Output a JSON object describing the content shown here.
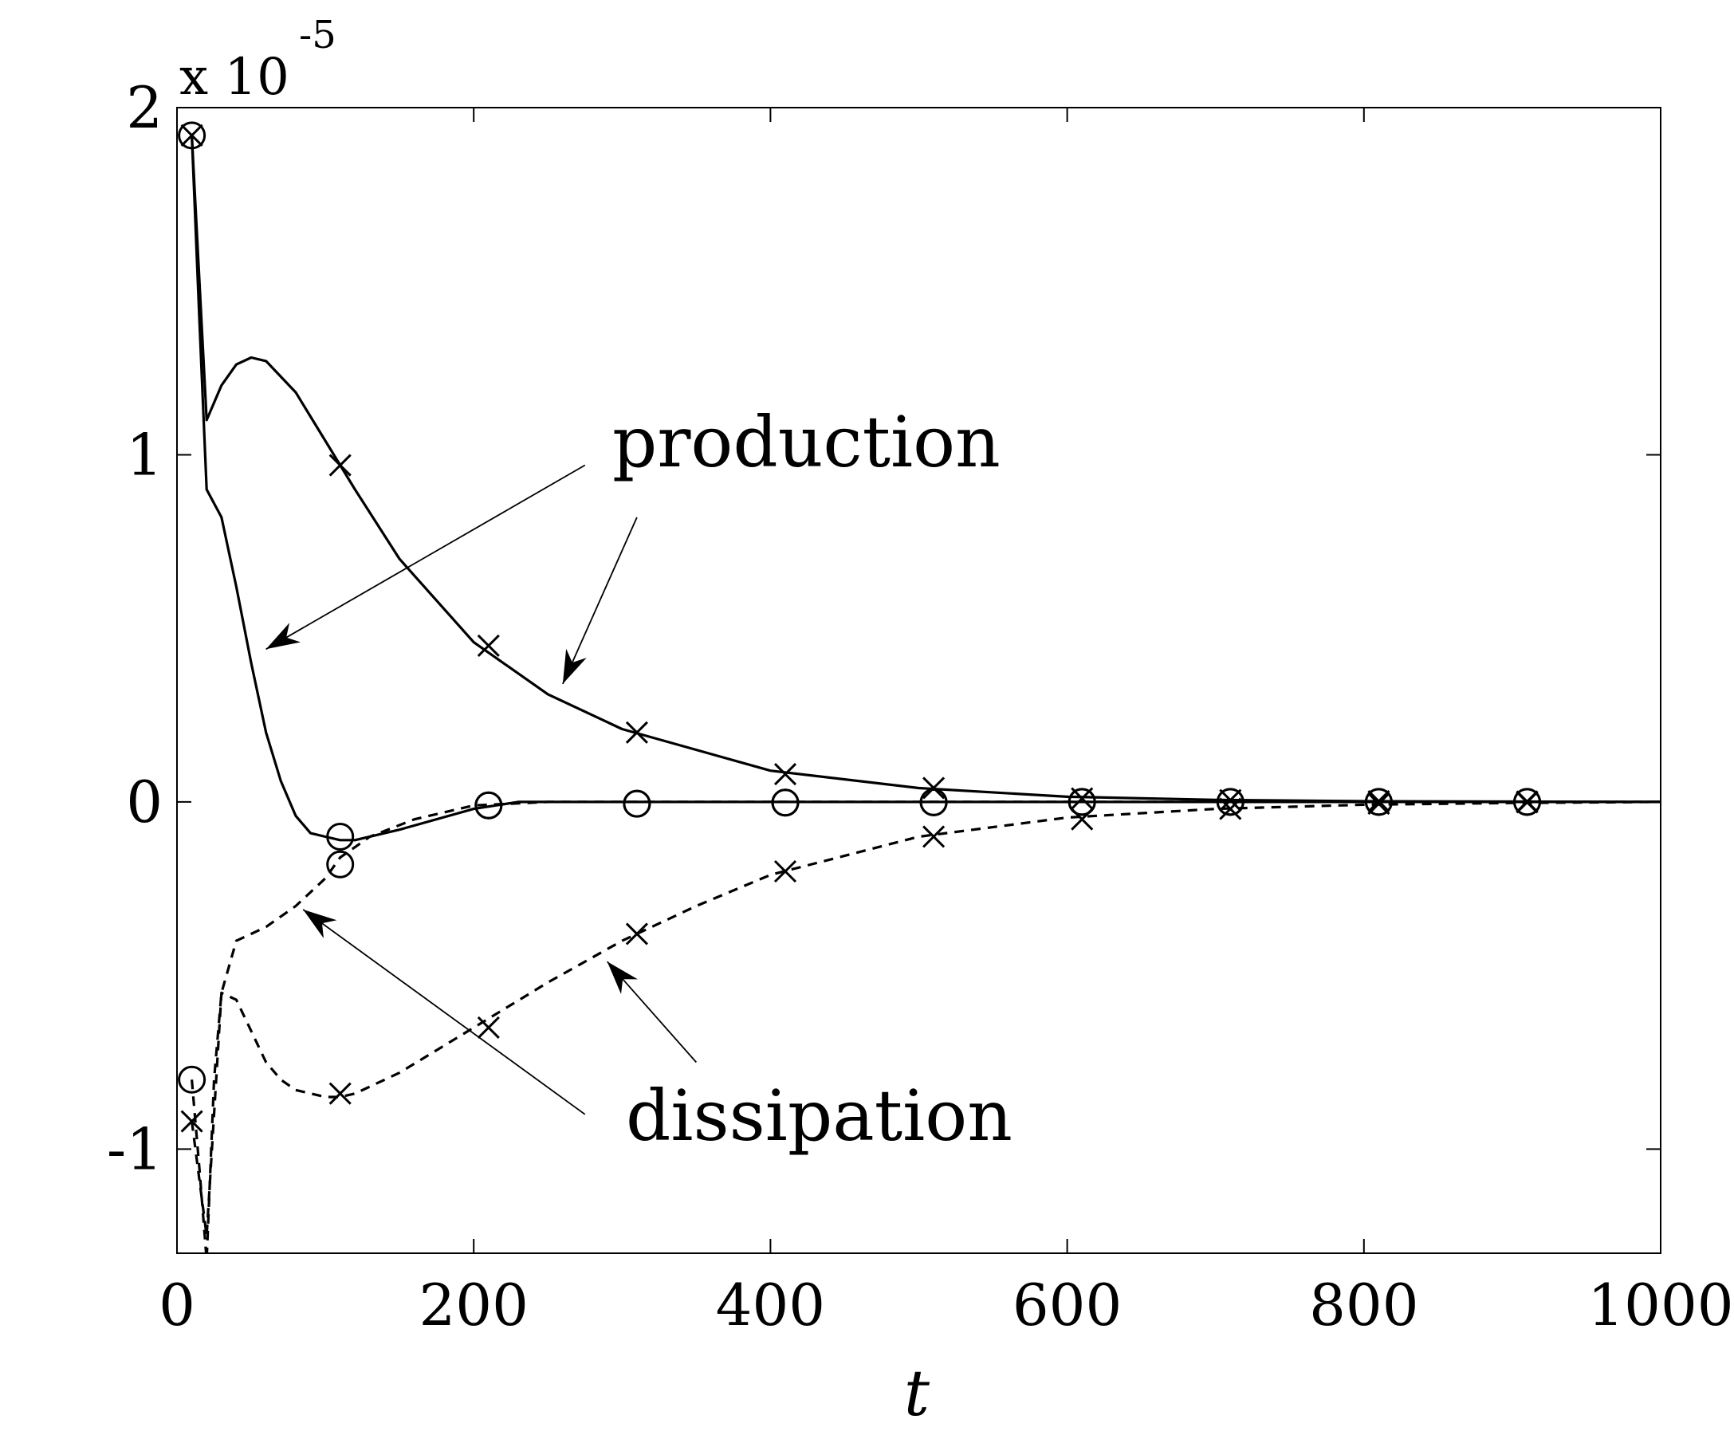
{
  "chart_data": {
    "type": "line",
    "xlabel": "t",
    "ylabel": "",
    "xlim": [
      0,
      1000
    ],
    "ylim": [
      -1.3,
      2.0
    ],
    "y_multiplier_label": "x 10",
    "y_multiplier_exponent": "-5",
    "xticks": [
      0,
      200,
      400,
      600,
      800,
      1000
    ],
    "xtick_labels": [
      "0",
      "200",
      "400",
      "600",
      "800",
      "1000"
    ],
    "yticks": [
      -1,
      0,
      1,
      2
    ],
    "ytick_labels": [
      "-1",
      "0",
      "1",
      "2"
    ],
    "grid": false,
    "series": [
      {
        "style": "solid",
        "x": [
          10,
          20,
          30,
          40,
          50,
          60,
          80,
          100,
          120,
          150,
          200,
          250,
          300,
          400,
          500,
          600,
          700,
          800,
          900,
          1000
        ],
        "values": [
          1.92,
          1.1,
          1.2,
          1.26,
          1.28,
          1.27,
          1.18,
          1.04,
          0.9,
          0.7,
          0.46,
          0.31,
          0.21,
          0.09,
          0.04,
          0.015,
          0.006,
          0.002,
          0.001,
          0.0
        ]
      },
      {
        "style": "solid",
        "x": [
          10,
          15,
          20,
          30,
          40,
          50,
          60,
          70,
          80,
          90,
          100,
          110,
          120,
          150,
          200,
          230,
          300,
          400,
          500,
          600,
          700,
          800,
          900,
          1000
        ],
        "values": [
          1.92,
          1.4,
          0.9,
          0.82,
          0.62,
          0.4,
          0.2,
          0.06,
          -0.04,
          -0.09,
          -0.1,
          -0.11,
          -0.11,
          -0.08,
          -0.02,
          0.0,
          0.0,
          0.0,
          0.0,
          0.0,
          0.0,
          0.0,
          0.0,
          0.0
        ]
      },
      {
        "style": "dashed",
        "x": [
          10,
          20,
          25,
          30,
          40,
          50,
          60,
          70,
          80,
          100,
          110,
          120,
          150,
          200,
          250,
          300,
          350,
          400,
          500,
          600,
          700,
          800,
          900,
          1000
        ],
        "values": [
          -0.92,
          -1.25,
          -0.9,
          -0.55,
          -0.57,
          -0.66,
          -0.75,
          -0.8,
          -0.83,
          -0.85,
          -0.85,
          -0.84,
          -0.78,
          -0.65,
          -0.52,
          -0.4,
          -0.3,
          -0.21,
          -0.1,
          -0.045,
          -0.02,
          -0.008,
          -0.003,
          0.0
        ]
      },
      {
        "style": "dashed",
        "x": [
          10,
          15,
          20,
          25,
          30,
          40,
          60,
          80,
          100,
          110,
          130,
          160,
          200,
          250,
          300,
          400,
          500,
          600,
          700,
          800,
          900,
          1000
        ],
        "values": [
          -0.8,
          -1.05,
          -1.32,
          -0.8,
          -0.55,
          -0.4,
          -0.36,
          -0.3,
          -0.22,
          -0.16,
          -0.1,
          -0.05,
          -0.01,
          0.0,
          0.0,
          0.0,
          0.0,
          0.0,
          0.0,
          0.0,
          0.0,
          0.0
        ]
      }
    ],
    "markers": {
      "x_marks": [
        [
          10,
          1.92
        ],
        [
          110,
          0.97
        ],
        [
          210,
          0.45
        ],
        [
          310,
          0.2
        ],
        [
          410,
          0.08
        ],
        [
          510,
          0.04
        ],
        [
          610,
          0.01
        ],
        [
          710,
          0.005
        ],
        [
          810,
          0.002
        ],
        [
          910,
          0.001
        ],
        [
          10,
          -0.92
        ],
        [
          110,
          -0.84
        ],
        [
          210,
          -0.65
        ],
        [
          310,
          -0.38
        ],
        [
          410,
          -0.2
        ],
        [
          510,
          -0.1
        ],
        [
          610,
          -0.05
        ],
        [
          710,
          -0.02
        ],
        [
          810,
          -0.005
        ],
        [
          910,
          -0.001
        ]
      ],
      "circle_marks": [
        [
          10,
          1.92
        ],
        [
          110,
          -0.1
        ],
        [
          210,
          -0.01
        ],
        [
          310,
          -0.005
        ],
        [
          410,
          -0.002
        ],
        [
          510,
          -0.001
        ],
        [
          610,
          0.0
        ],
        [
          710,
          0.0
        ],
        [
          810,
          0.0
        ],
        [
          910,
          0.0
        ],
        [
          10,
          -0.8
        ],
        [
          110,
          -0.18
        ],
        [
          210,
          -0.01
        ],
        [
          310,
          -0.005
        ],
        [
          410,
          -0.002
        ],
        [
          510,
          -0.001
        ],
        [
          610,
          0.0
        ],
        [
          710,
          0.0
        ],
        [
          810,
          0.0
        ],
        [
          910,
          0.0
        ]
      ]
    },
    "annotations": [
      {
        "text": "production",
        "arrows": [
          {
            "from": [
              275,
              0.97
            ],
            "to": [
              60,
              0.44
            ]
          },
          {
            "from": [
              310,
              0.82
            ],
            "to": [
              260,
              0.34
            ]
          }
        ]
      },
      {
        "text": "dissipation",
        "arrows": [
          {
            "from": [
              275,
              -0.9
            ],
            "to": [
              85,
              -0.31
            ]
          },
          {
            "from": [
              350,
              -0.75
            ],
            "to": [
              290,
              -0.46
            ]
          }
        ]
      }
    ]
  }
}
